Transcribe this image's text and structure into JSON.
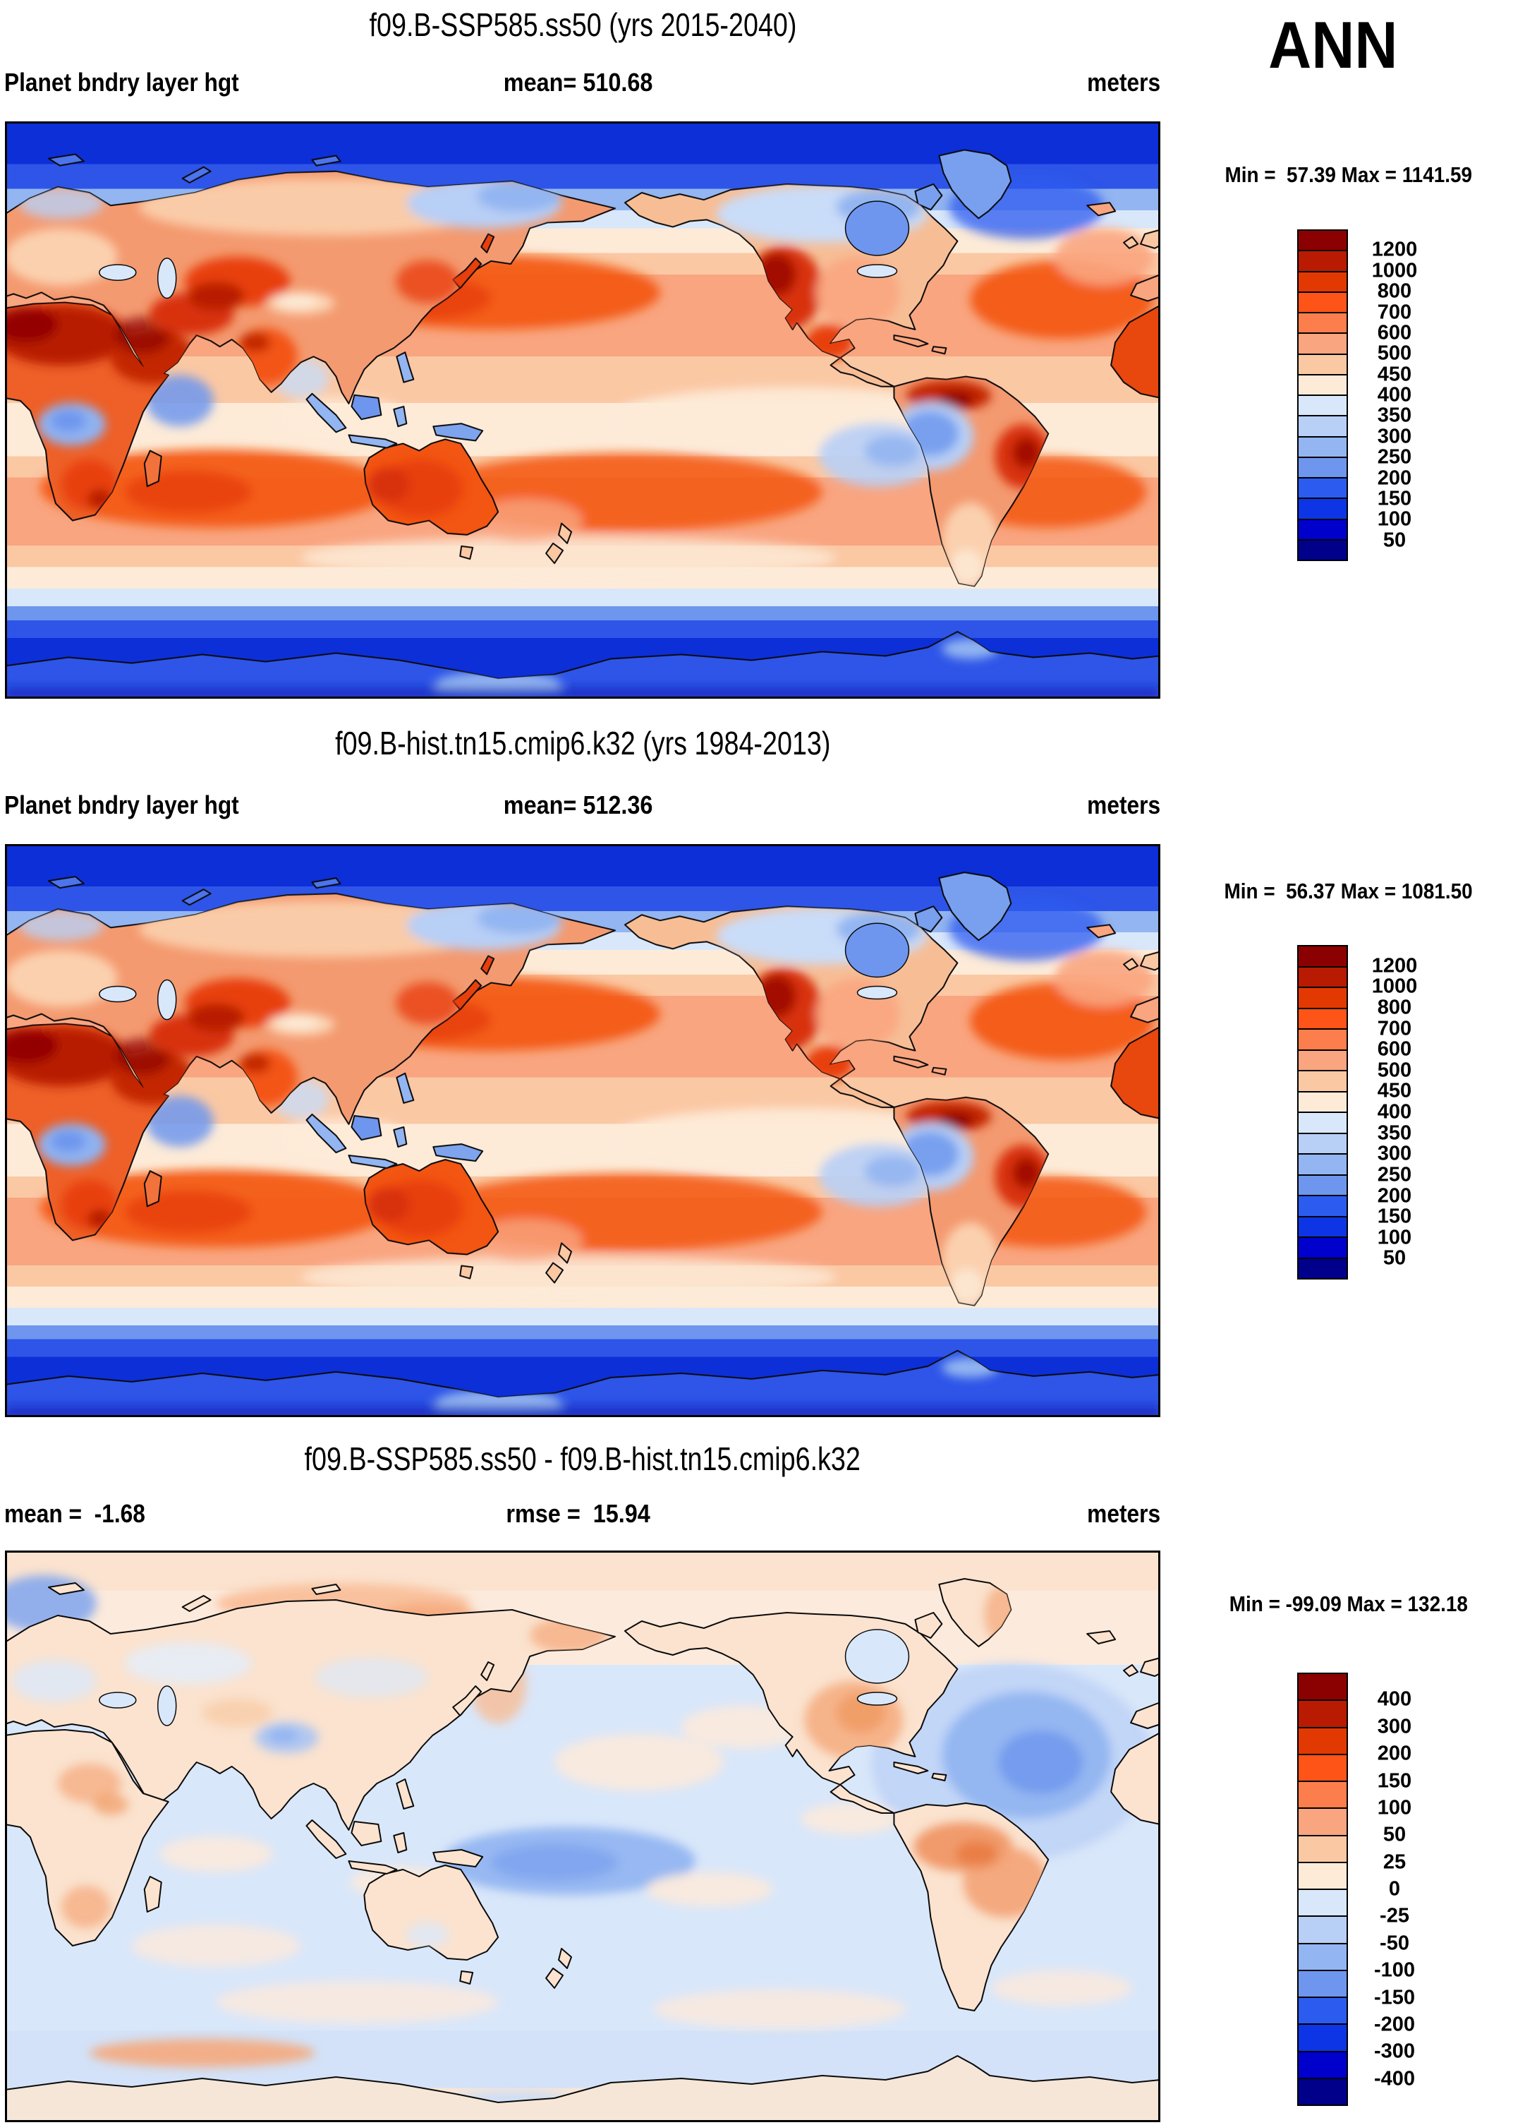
{
  "page": {
    "background": "#FFFFFF",
    "season": "ANN"
  },
  "panels": [
    {
      "title": "f09.B-SSP585.ss50 (yrs 2015-2040)",
      "variable": "Planet bndry layer hgt",
      "mean_label": "mean= 510.68",
      "units": "meters",
      "minmax_label": "Min =  57.39 Max = 1141.59",
      "colorbar": {
        "labels": [
          "1200",
          "1000",
          "800",
          "700",
          "600",
          "500",
          "450",
          "400",
          "350",
          "300",
          "250",
          "200",
          "150",
          "100",
          "50"
        ],
        "colors": [
          "#8B0000",
          "#B81A02",
          "#E13901",
          "#FF5418",
          "#FB7E4C",
          "#F9A580",
          "#FBC8A4",
          "#FDEBD8",
          "#D9E7FA",
          "#B8CFF6",
          "#93B5F1",
          "#6E96EE",
          "#2C5CEF",
          "#0D35E5",
          "#0000CD",
          "#00008B"
        ]
      }
    },
    {
      "title": "f09.B-hist.tn15.cmip6.k32 (yrs 1984-2013)",
      "variable": "Planet bndry layer hgt",
      "mean_label": "mean= 512.36",
      "units": "meters",
      "minmax_label": "Min =  56.37 Max = 1081.50",
      "colorbar": {
        "labels": [
          "1200",
          "1000",
          "800",
          "700",
          "600",
          "500",
          "450",
          "400",
          "350",
          "300",
          "250",
          "200",
          "150",
          "100",
          "50"
        ],
        "colors": [
          "#8B0000",
          "#B81A02",
          "#E13901",
          "#FF5418",
          "#FB7E4C",
          "#F9A580",
          "#FBC8A4",
          "#FDEBD8",
          "#D9E7FA",
          "#B8CFF6",
          "#93B5F1",
          "#6E96EE",
          "#2C5CEF",
          "#0D35E5",
          "#0000CD",
          "#00008B"
        ]
      }
    },
    {
      "title": "f09.B-SSP585.ss50 - f09.B-hist.tn15.cmip6.k32",
      "mean_label": "mean =  -1.68",
      "rmse_label": "rmse =  15.94",
      "units": "meters",
      "minmax_label": "Min = -99.09 Max = 132.18",
      "colorbar": {
        "labels": [
          "400",
          "300",
          "200",
          "150",
          "100",
          "50",
          "25",
          "0",
          "-25",
          "-50",
          "-100",
          "-150",
          "-200",
          "-300",
          "-400"
        ],
        "colors": [
          "#8B0000",
          "#B81A02",
          "#E13901",
          "#FF5418",
          "#FB7E4C",
          "#F9A580",
          "#FBC8A4",
          "#FDEBD8",
          "#D9E7FA",
          "#B8CFF6",
          "#93B5F1",
          "#6E96EE",
          "#2C5CEF",
          "#0D35E5",
          "#0000CD",
          "#00008B"
        ]
      }
    }
  ],
  "chart_data": [
    {
      "type": "heatmap",
      "subtype": "filled-contour global map, equirectangular, Pacific-centered (0-360E)",
      "title": "f09.B-SSP585.ss50 (yrs 2015-2040)",
      "variable": "Planet bndry layer hgt",
      "units": "meters",
      "season": "ANN",
      "mean": 510.68,
      "min": 57.39,
      "max": 1141.59,
      "contour_levels": [
        50,
        100,
        150,
        200,
        250,
        300,
        350,
        400,
        450,
        500,
        600,
        700,
        800,
        1000,
        1200
      ],
      "palette_low_to_high": [
        "#00008B",
        "#0000CD",
        "#0D35E5",
        "#2C5CEF",
        "#6E96EE",
        "#93B5F1",
        "#B8CFF6",
        "#D9E7FA",
        "#FDEBD8",
        "#FBC8A4",
        "#F9A580",
        "#FB7E4C",
        "#FF5418",
        "#E13901",
        "#B81A02",
        "#8B0000"
      ],
      "legend_position": "right",
      "grid": false
    },
    {
      "type": "heatmap",
      "subtype": "filled-contour global map, equirectangular, Pacific-centered (0-360E)",
      "title": "f09.B-hist.tn15.cmip6.k32 (yrs 1984-2013)",
      "variable": "Planet bndry layer hgt",
      "units": "meters",
      "season": "ANN",
      "mean": 512.36,
      "min": 56.37,
      "max": 1081.5,
      "contour_levels": [
        50,
        100,
        150,
        200,
        250,
        300,
        350,
        400,
        450,
        500,
        600,
        700,
        800,
        1000,
        1200
      ],
      "palette_low_to_high": [
        "#00008B",
        "#0000CD",
        "#0D35E5",
        "#2C5CEF",
        "#6E96EE",
        "#93B5F1",
        "#B8CFF6",
        "#D9E7FA",
        "#FDEBD8",
        "#FBC8A4",
        "#F9A580",
        "#FB7E4C",
        "#FF5418",
        "#E13901",
        "#B81A02",
        "#8B0000"
      ],
      "legend_position": "right",
      "grid": false
    },
    {
      "type": "heatmap",
      "subtype": "difference map (case1 - case2), equirectangular, Pacific-centered (0-360E)",
      "title": "f09.B-SSP585.ss50 - f09.B-hist.tn15.cmip6.k32",
      "variable": "Planet bndry layer hgt difference",
      "units": "meters",
      "season": "ANN",
      "mean": -1.68,
      "rmse": 15.94,
      "min": -99.09,
      "max": 132.18,
      "contour_levels": [
        -400,
        -300,
        -200,
        -150,
        -100,
        -50,
        -25,
        0,
        25,
        50,
        100,
        150,
        200,
        300,
        400
      ],
      "palette_low_to_high": [
        "#00008B",
        "#0000CD",
        "#0D35E5",
        "#2C5CEF",
        "#6E96EE",
        "#93B5F1",
        "#B8CFF6",
        "#D9E7FA",
        "#FDEBD8",
        "#FBC8A4",
        "#F9A580",
        "#FB7E4C",
        "#FF5418",
        "#E13901",
        "#B81A02",
        "#8B0000"
      ],
      "legend_position": "right",
      "grid": false
    }
  ]
}
